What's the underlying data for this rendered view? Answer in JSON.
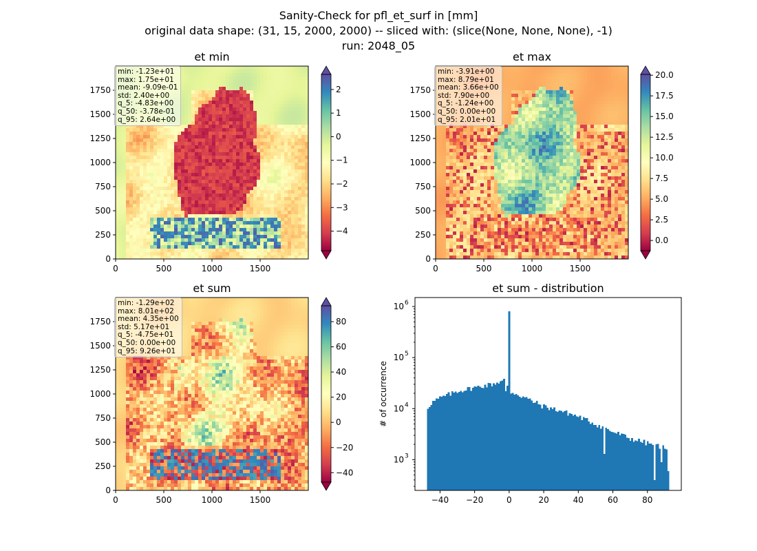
{
  "figure": {
    "title_line1": "Sanity-Check for pfl_et_surf in [mm]",
    "title_line2": "original data shape: (31, 15, 2000, 2000) -- sliced with: (slice(None, None, None), -1)",
    "title_line3": "run: 2048_05"
  },
  "colormap": "Spectral",
  "chart_data": [
    {
      "type": "heatmap",
      "title": "et min",
      "xticks": [
        0,
        500,
        1000,
        1500
      ],
      "yticks": [
        0,
        250,
        500,
        750,
        1000,
        1250,
        1500,
        1750
      ],
      "xlim": [
        0,
        2000
      ],
      "ylim": [
        0,
        2000
      ],
      "colorbar": {
        "min": -4.83,
        "max": 2.64,
        "ticks": [
          -4,
          -3,
          -2,
          -1,
          0,
          1,
          2
        ],
        "extend": "both"
      },
      "stats": [
        "min: -1.23e+01",
        "max: 1.75e+01",
        "mean: -9.09e-01",
        "std: 2.40e+00",
        "q_5: -4.83e+00",
        "q_50: -3.78e-01",
        "q_95: 2.64e+00"
      ]
    },
    {
      "type": "heatmap",
      "title": "et max",
      "xticks": [
        0,
        500,
        1000,
        1500
      ],
      "yticks": [
        0,
        250,
        500,
        750,
        1000,
        1250,
        1500,
        1750
      ],
      "xlim": [
        0,
        2000
      ],
      "ylim": [
        0,
        2000
      ],
      "colorbar": {
        "min": -1.24,
        "max": 20.1,
        "ticks": [
          0.0,
          2.5,
          5.0,
          7.5,
          10.0,
          12.5,
          15.0,
          17.5,
          20.0
        ],
        "tick_labels": [
          "0.0",
          "2.5",
          "5.0",
          "7.5",
          "10.0",
          "12.5",
          "15.0",
          "17.5",
          "20.0"
        ],
        "extend": "both"
      },
      "stats": [
        "min: -3.91e+00",
        "max: 8.79e+01",
        "mean: 3.66e+00",
        "std: 7.90e+00",
        "q_5: -1.24e+00",
        "q_50: 0.00e+00",
        "q_95: 2.01e+01"
      ]
    },
    {
      "type": "heatmap",
      "title": "et sum",
      "xticks": [
        0,
        500,
        1000,
        1500
      ],
      "yticks": [
        0,
        250,
        500,
        750,
        1000,
        1250,
        1500,
        1750
      ],
      "xlim": [
        0,
        2000
      ],
      "ylim": [
        0,
        2000
      ],
      "colorbar": {
        "min": -47.5,
        "max": 92.6,
        "ticks": [
          -40,
          -20,
          0,
          20,
          40,
          60,
          80
        ],
        "extend": "both"
      },
      "stats": [
        "min: -1.29e+02",
        "max: 8.01e+02",
        "mean: 4.35e+00",
        "std: 5.17e+01",
        "q_5: -4.75e+01",
        "q_50: 0.00e+00",
        "q_95: 9.26e+01"
      ]
    },
    {
      "type": "bar",
      "title": "et sum - distribution",
      "ylabel": "# of occurrence",
      "yscale": "log",
      "xlim": [
        -54.5,
        99.6
      ],
      "ylim": [
        250,
        1500000
      ],
      "xticks": [
        -40,
        -20,
        0,
        20,
        40,
        60,
        80
      ],
      "yticks": [
        1000,
        10000,
        100000,
        1000000
      ],
      "ytick_labels": [
        "10",
        "10",
        "10",
        "10"
      ],
      "ytick_exponents": [
        "3",
        "4",
        "5",
        "6"
      ],
      "color": "#1f77b4",
      "bins": {
        "start": -47.5,
        "end": 92.6,
        "count": 140
      },
      "spike": {
        "x": 0,
        "count": 800000
      },
      "profile": [
        [
          -47.5,
          10000
        ],
        [
          -45,
          13000
        ],
        [
          -40,
          16000
        ],
        [
          -30,
          22000
        ],
        [
          -20,
          26000
        ],
        [
          -10,
          30000
        ],
        [
          -5,
          34000
        ],
        [
          -2,
          37000
        ],
        [
          0,
          20000
        ],
        [
          2,
          21000
        ],
        [
          10,
          16000
        ],
        [
          20,
          11000
        ],
        [
          30,
          9000
        ],
        [
          40,
          7000
        ],
        [
          50,
          5000
        ],
        [
          60,
          3500
        ],
        [
          70,
          2600
        ],
        [
          80,
          2100
        ],
        [
          92.6,
          1700
        ]
      ],
      "dips": [
        [
          -2,
          22000
        ],
        [
          55,
          1300
        ],
        [
          84,
          400
        ],
        [
          88,
          900
        ],
        [
          92,
          600
        ]
      ]
    }
  ]
}
